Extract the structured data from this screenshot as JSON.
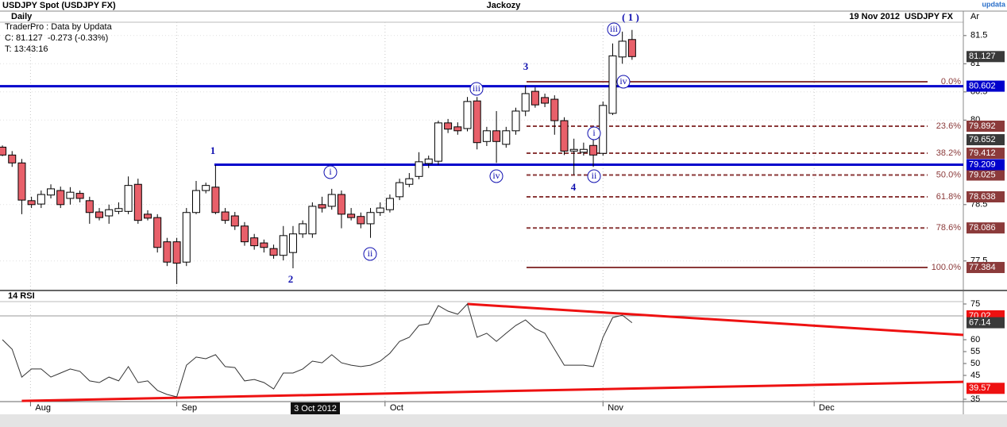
{
  "header": {
    "symbol": "USDJPY Spot (USDJPY FX)",
    "author": "Jackozy",
    "date_symbol": "19 Nov 2012  USDJPY FX",
    "brand": "updata",
    "corner": "Ar"
  },
  "chart_data": [
    {
      "type": "candlestick",
      "period": "Daily",
      "info": [
        "TraderPro : Data by Updata",
        "C: 81.127  -0.273 (-0.33%)",
        "T: 13:43:16"
      ],
      "categories": [
        null,
        null,
        null,
        null,
        null,
        null,
        null,
        null,
        null,
        null,
        null,
        null,
        null,
        null,
        null,
        null,
        null,
        null,
        null,
        null,
        null,
        null,
        null,
        null,
        null,
        null,
        null,
        null,
        null,
        null,
        null,
        null,
        null,
        null,
        null,
        null,
        null,
        null,
        null,
        null,
        null,
        null,
        null,
        null,
        null,
        null,
        null,
        null,
        null,
        null,
        null,
        null,
        null,
        null,
        null,
        null,
        null,
        null,
        null,
        null,
        null,
        null,
        null,
        null,
        null,
        null
      ],
      "open": [
        79.52,
        79.38,
        79.24,
        78.57,
        78.51,
        78.67,
        78.75,
        78.61,
        78.7,
        78.57,
        78.37,
        78.3,
        78.38,
        78.38,
        78.86,
        78.33,
        78.27,
        77.84,
        77.84,
        77.48,
        78.36,
        78.75,
        78.81,
        78.37,
        78.3,
        78.12,
        77.91,
        77.82,
        77.72,
        77.6,
        77.65,
        77.98,
        77.98,
        78.5,
        78.47,
        78.68,
        78.33,
        78.29,
        78.16,
        78.36,
        78.41,
        78.64,
        78.86,
        79.0,
        79.23,
        79.27,
        79.95,
        79.88,
        79.85,
        80.34,
        79.62,
        79.81,
        79.57,
        79.81,
        80.16,
        80.51,
        80.4,
        80.37,
        79.99,
        79.45,
        79.43,
        79.55,
        79.41,
        80.12,
        81.12,
        81.43
      ],
      "high": [
        79.55,
        79.45,
        79.31,
        78.64,
        78.75,
        78.86,
        78.82,
        78.81,
        78.75,
        78.64,
        78.44,
        78.5,
        78.54,
        79.0,
        78.96,
        78.4,
        78.33,
        77.91,
        77.91,
        78.44,
        78.92,
        78.89,
        79.2,
        78.44,
        78.37,
        78.19,
        77.98,
        77.88,
        77.79,
        78.12,
        78.12,
        78.22,
        78.54,
        78.64,
        78.78,
        78.75,
        78.44,
        78.36,
        78.44,
        78.54,
        78.68,
        78.96,
        79.06,
        79.43,
        79.37,
        79.99,
        80.02,
        79.96,
        80.41,
        80.41,
        79.88,
        80.16,
        79.88,
        80.22,
        80.61,
        80.58,
        80.47,
        80.44,
        80.05,
        79.67,
        79.6,
        79.74,
        80.33,
        81.36,
        81.57,
        81.6
      ],
      "low": [
        79.36,
        79.17,
        78.33,
        78.44,
        78.44,
        78.61,
        78.44,
        78.5,
        78.54,
        78.16,
        78.22,
        78.16,
        78.33,
        78.33,
        78.16,
        78.22,
        77.65,
        77.41,
        77.09,
        77.41,
        78.33,
        78.7,
        78.33,
        78.16,
        78.05,
        77.77,
        77.7,
        77.65,
        77.54,
        77.51,
        77.37,
        77.91,
        77.91,
        78.36,
        78.41,
        78.08,
        78.22,
        78.08,
        77.91,
        78.3,
        78.36,
        78.58,
        78.81,
        78.95,
        79.15,
        79.2,
        79.77,
        79.74,
        79.8,
        79.48,
        79.54,
        79.24,
        79.51,
        79.74,
        80.07,
        80.22,
        80.23,
        79.74,
        79.38,
        79.03,
        79.37,
        79.17,
        79.37,
        80.09,
        81.0,
        81.07
      ],
      "close": [
        79.38,
        79.24,
        78.58,
        78.5,
        78.68,
        78.78,
        78.5,
        78.72,
        78.61,
        78.36,
        78.27,
        78.41,
        78.43,
        78.84,
        78.22,
        78.26,
        77.74,
        77.48,
        77.46,
        78.36,
        78.75,
        78.84,
        78.36,
        78.22,
        78.12,
        77.84,
        77.77,
        77.74,
        77.6,
        77.95,
        77.98,
        78.16,
        78.47,
        78.44,
        78.68,
        78.33,
        78.27,
        78.16,
        78.36,
        78.44,
        78.61,
        78.89,
        78.96,
        79.26,
        79.31,
        79.95,
        79.84,
        79.81,
        80.33,
        79.6,
        79.81,
        79.62,
        79.81,
        80.16,
        80.47,
        80.27,
        80.3,
        79.99,
        79.45,
        79.48,
        79.48,
        79.38,
        80.26,
        81.14,
        81.4,
        81.127
      ],
      "up_color": "#ffffff",
      "down_color": "#e8606a",
      "xlim": [
        -0.25,
        99.2
      ],
      "xticks": [
        {
          "value": 2.9,
          "label": "Aug"
        },
        {
          "value": 18,
          "label": "Sep"
        },
        {
          "value": 39.5,
          "label": "Oct"
        },
        {
          "value": 62,
          "label": "Nov"
        },
        {
          "value": 83.8,
          "label": "Dec"
        }
      ],
      "crosshair": {
        "value": 32.3,
        "label": "3 Oct 2012"
      },
      "ylim": [
        76.976,
        81.934
      ],
      "yticks": [
        77.5,
        78.5,
        80,
        80.5,
        81,
        81.5
      ],
      "hlines": [
        {
          "value": 80.602,
          "color": "#0000cc"
        },
        {
          "value": 79.209,
          "color": "#0000cc"
        }
      ],
      "fib_color": "#8b3a3a",
      "fib_levels": [
        {
          "label": "0.0%",
          "value": 80.68
        },
        {
          "label": "23.6%",
          "value": 79.892
        },
        {
          "label": "38.2%",
          "value": 79.412
        },
        {
          "label": "50.0%",
          "value": 79.025
        },
        {
          "label": "61.8%",
          "value": 78.638
        },
        {
          "label": "78.6%",
          "value": 78.086
        },
        {
          "label": "100.0%",
          "value": 77.384
        }
      ],
      "price_markers": [
        {
          "value": 79.652,
          "color": "#3a3a3a"
        }
      ],
      "last_color": "#3a3a3a",
      "annotations": [
        "1",
        "2",
        "3",
        "4",
        "( 1 )",
        "i",
        "ii",
        "iii",
        "iv",
        "iii",
        "iv",
        "i",
        "ii"
      ]
    },
    {
      "type": "line",
      "title": "14 RSI",
      "color": "#333333",
      "values": [
        60,
        56,
        44.3,
        47.7,
        47.7,
        44.3,
        46,
        47.7,
        46.7,
        42.7,
        42,
        44.3,
        42.7,
        48.7,
        42,
        42.7,
        38.7,
        37,
        36,
        49.3,
        52.7,
        52,
        53.7,
        48.7,
        48.3,
        42.7,
        43.3,
        42,
        39.3,
        46,
        46,
        47.7,
        51,
        50.3,
        53.7,
        50.3,
        49.3,
        48.7,
        49.3,
        51,
        54.3,
        59.3,
        61,
        66,
        66.7,
        74.3,
        72,
        70.7,
        75,
        61,
        62.7,
        59.3,
        62.7,
        66,
        68.3,
        64.7,
        62.7,
        56,
        49.3,
        49.3,
        49.3,
        48.7,
        61,
        69.3,
        70.3,
        67.14
      ],
      "ylim": [
        34,
        80.67
      ],
      "yticks": [
        35,
        45,
        50,
        55,
        60,
        75
      ],
      "reference": 70,
      "trend_color": "#ee1111",
      "trendlines": [
        {
          "x": [
            48,
            99.2
          ],
          "values": [
            75,
            62
          ]
        },
        {
          "x": [
            2,
            99.2
          ],
          "values": [
            34.3,
            42.3
          ]
        }
      ],
      "markers": [
        {
          "value": 70.02,
          "color": "#ee1111"
        },
        {
          "value": 39.57,
          "color": "#ee1111"
        }
      ]
    }
  ]
}
